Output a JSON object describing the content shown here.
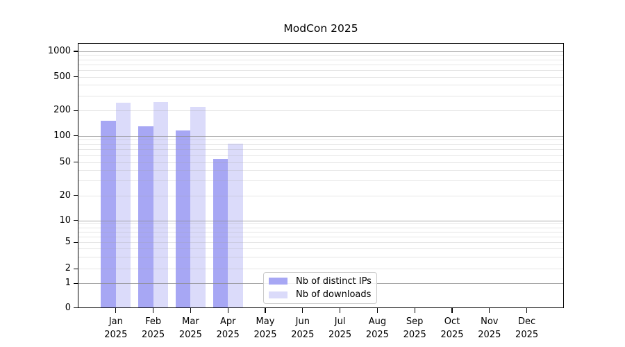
{
  "title": "ModCon 2025",
  "year_label": "2025",
  "legend": {
    "items": [
      {
        "label": "Nb of distinct IPs",
        "color": "#a7a7f4"
      },
      {
        "label": "Nb of downloads",
        "color": "#dbdbfa"
      }
    ]
  },
  "chart_data": {
    "type": "bar",
    "title": "ModCon 2025",
    "categories": [
      "Jan 2025",
      "Feb 2025",
      "Mar 2025",
      "Apr 2025",
      "May 2025",
      "Jun 2025",
      "Jul 2025",
      "Aug 2025",
      "Sep 2025",
      "Oct 2025",
      "Nov 2025",
      "Dec 2025"
    ],
    "month_labels": [
      "Jan",
      "Feb",
      "Mar",
      "Apr",
      "May",
      "Jun",
      "Jul",
      "Aug",
      "Sep",
      "Oct",
      "Nov",
      "Dec"
    ],
    "series": [
      {
        "name": "Nb of distinct IPs",
        "color": "#a7a7f4",
        "values": [
          150,
          130,
          115,
          54,
          0,
          0,
          0,
          0,
          0,
          0,
          0,
          0
        ]
      },
      {
        "name": "Nb of downloads",
        "color": "#dbdbfa",
        "values": [
          245,
          250,
          220,
          82,
          0,
          0,
          0,
          0,
          0,
          0,
          0,
          0
        ]
      }
    ],
    "xlabel": "",
    "ylabel": "",
    "yscale": "quasi-log (log decades above 10, compressed below, 0 baseline)",
    "y_ticks": [
      0,
      1,
      2,
      5,
      10,
      20,
      50,
      100,
      200,
      500,
      1000
    ],
    "y_major_ticks": [
      1,
      10,
      100,
      1000
    ],
    "ylim": [
      0,
      1250
    ],
    "grid": "horizontal major + faint log minor gridlines, drawn over bars",
    "legend_position": "inside plot, lower middle"
  }
}
